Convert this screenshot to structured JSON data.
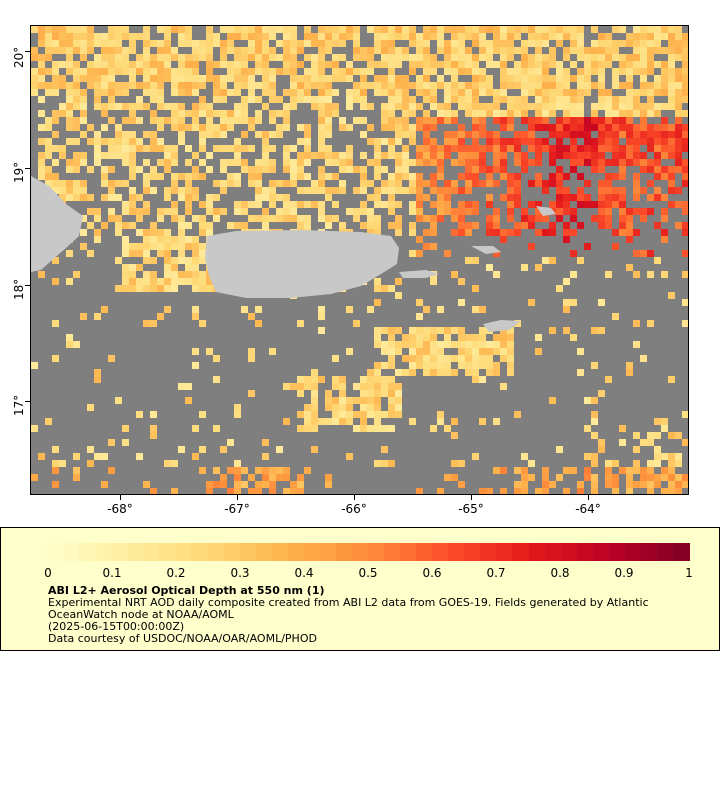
{
  "map": {
    "y_labels": [
      "20°",
      "19°",
      "18°",
      "17°"
    ],
    "x_labels": [
      "-68°",
      "-67°",
      "-66°",
      "-65°",
      "-64°"
    ],
    "colors": {
      "no_data": "#7f7f7f",
      "land": "#c8c8c8",
      "frame": "#000000"
    }
  },
  "legend": {
    "ticks": [
      "0",
      "0.1",
      "0.2",
      "0.3",
      "0.4",
      "0.5",
      "0.6",
      "0.7",
      "0.8",
      "0.9",
      "1"
    ],
    "title": "ABI L2+ Aerosol Optical Depth at 550 nm (1)",
    "desc_line1": "Experimental NRT AOD daily composite created from ABI L2 data from GOES-19. Fields generated by Atlantic OceanWatch node at NOAA/AOML",
    "desc_line2": "(2025-06-15T00:00:00Z)",
    "desc_line3": "Data courtesy of USDOC/NOAA/OAR/AOML/PHOD",
    "colormap": [
      "#ffffcc",
      "#ffeda0",
      "#fed976",
      "#feb24c",
      "#fd8d3c",
      "#fc4e2a",
      "#e31a1c",
      "#bd0026",
      "#800026"
    ]
  }
}
